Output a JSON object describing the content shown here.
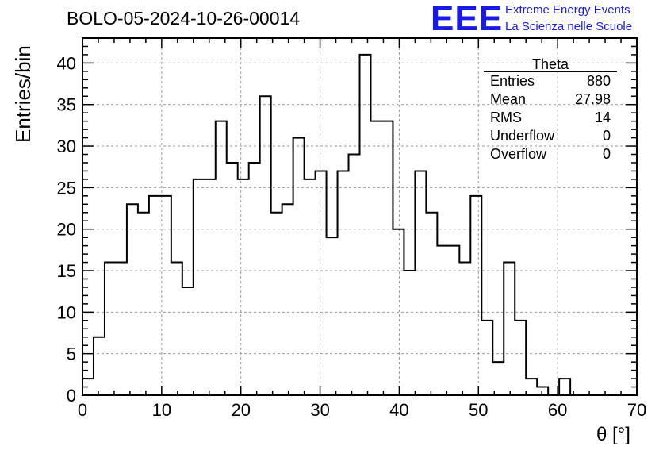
{
  "title": "BOLO-05-2024-10-26-00014",
  "logo": {
    "mark": "EEE",
    "line1": "Extreme Energy Events",
    "line2": "La Scienza nelle Scuole"
  },
  "stats": {
    "name": "Theta",
    "rows": [
      {
        "label": "Entries",
        "value": "880"
      },
      {
        "label": "Mean",
        "value": "27.98"
      },
      {
        "label": "RMS",
        "value": "14"
      },
      {
        "label": "Underflow",
        "value": "0"
      },
      {
        "label": "Overflow",
        "value": "0"
      }
    ]
  },
  "chart_data": {
    "type": "bar",
    "style": "step-histogram",
    "xlabel": "θ [°]",
    "ylabel": "Entries/bin",
    "xlim": [
      0,
      70
    ],
    "ylim": [
      0,
      43
    ],
    "bin_width": 1.4,
    "grid": true,
    "xticks": [
      0,
      10,
      20,
      30,
      40,
      50,
      60,
      70
    ],
    "yticks": [
      0,
      5,
      10,
      15,
      20,
      25,
      30,
      35,
      40
    ],
    "values": [
      2,
      7,
      16,
      16,
      23,
      22,
      24,
      24,
      16,
      13,
      26,
      26,
      33,
      28,
      26,
      28,
      36,
      22,
      23,
      31,
      26,
      27,
      19,
      27,
      29,
      41,
      33,
      33,
      20,
      15,
      27,
      22,
      18,
      18,
      16,
      24,
      9,
      4,
      16,
      9,
      2,
      1,
      0,
      2,
      0,
      0,
      0,
      0,
      0,
      0
    ]
  }
}
